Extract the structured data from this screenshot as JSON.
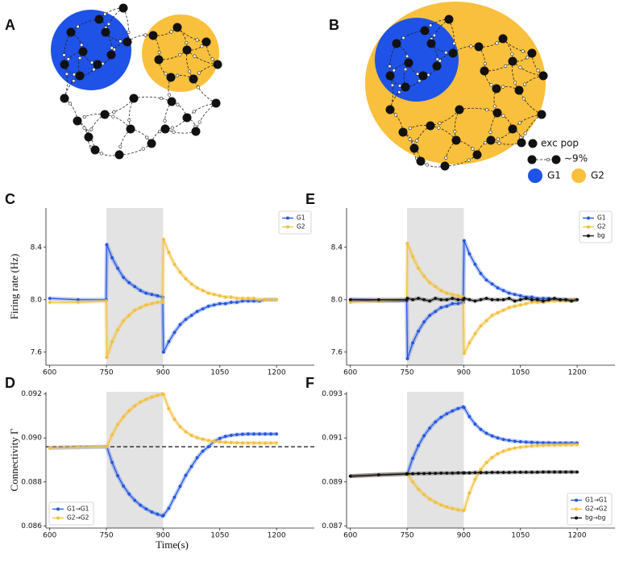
{
  "diagrams": [
    {
      "label": "A",
      "colors": [
        "#1f52e6",
        "#f8c03c"
      ]
    },
    {
      "label": "B",
      "colors": [
        "#1f52e6",
        "#f8c03c"
      ],
      "legend": {
        "node": "exc pop",
        "link": "∼9%",
        "groups": [
          "G1",
          "G2"
        ]
      }
    }
  ],
  "chart_data": [
    {
      "type": "line",
      "label": "C",
      "ylabel": "Firing rate (Hz)",
      "x": [
        600,
        675,
        749,
        751,
        765,
        780,
        795,
        810,
        825,
        840,
        855,
        870,
        885,
        899,
        901,
        915,
        930,
        945,
        960,
        975,
        990,
        1005,
        1020,
        1035,
        1050,
        1065,
        1080,
        1095,
        1110,
        1125,
        1140,
        1155,
        1170,
        1185,
        1200
      ],
      "series": [
        {
          "name": "G1",
          "color": "#2356e0",
          "values": [
            8.01,
            8.0,
            8.0,
            8.42,
            8.32,
            8.24,
            8.17,
            8.13,
            8.1,
            8.07,
            8.05,
            8.04,
            8.03,
            8.02,
            7.6,
            7.68,
            7.75,
            7.81,
            7.85,
            7.88,
            7.91,
            7.93,
            7.95,
            7.96,
            7.97,
            7.97,
            7.98,
            7.98,
            7.99,
            7.99,
            7.99,
            7.99,
            8.0,
            8.0,
            8.0
          ]
        },
        {
          "name": "G2",
          "color": "#f2c03a",
          "values": [
            7.98,
            7.98,
            7.99,
            7.56,
            7.68,
            7.77,
            7.84,
            7.88,
            7.92,
            7.94,
            7.96,
            7.97,
            7.98,
            7.98,
            8.46,
            8.36,
            8.27,
            8.21,
            8.16,
            8.12,
            8.09,
            8.07,
            8.05,
            8.04,
            8.03,
            8.02,
            8.02,
            8.01,
            8.01,
            8.01,
            8.01,
            8.0,
            8.0,
            8.0,
            8.0
          ]
        }
      ],
      "xlim": [
        590,
        1300
      ],
      "ylim": [
        7.5,
        8.7
      ],
      "xticks": [
        600,
        750,
        900,
        1050,
        1200
      ],
      "yticks": [
        7.6,
        {
          "value": 8,
          "label": "8.0"
        },
        8.4
      ],
      "shaded_xrange": [
        750,
        900
      ],
      "shade_color": "#e3e3e3",
      "legend": "upper right"
    },
    {
      "type": "line",
      "label": "E",
      "x": [
        600,
        675,
        749,
        751,
        765,
        780,
        795,
        810,
        825,
        840,
        855,
        870,
        885,
        899,
        901,
        915,
        930,
        945,
        960,
        975,
        990,
        1005,
        1020,
        1035,
        1050,
        1065,
        1080,
        1095,
        1110,
        1125,
        1140,
        1155,
        1170,
        1185,
        1200
      ],
      "series": [
        {
          "name": "G1",
          "color": "#2356e0",
          "values": [
            8.0,
            7.99,
            7.99,
            7.55,
            7.67,
            7.76,
            7.83,
            7.88,
            7.91,
            7.94,
            7.95,
            7.97,
            7.97,
            7.98,
            8.45,
            8.35,
            8.27,
            8.2,
            8.15,
            8.12,
            8.09,
            8.07,
            8.05,
            8.04,
            8.03,
            8.02,
            8.02,
            8.01,
            8.01,
            8.01,
            8.0,
            8.0,
            8.0,
            8.0,
            8.0
          ]
        },
        {
          "name": "G2",
          "color": "#f2c03a",
          "values": [
            7.98,
            7.99,
            8.0,
            8.43,
            8.33,
            8.24,
            8.18,
            8.13,
            8.1,
            8.07,
            8.05,
            8.04,
            8.03,
            8.02,
            7.59,
            7.67,
            7.74,
            7.8,
            7.84,
            7.88,
            7.9,
            7.92,
            7.94,
            7.95,
            7.96,
            7.97,
            7.98,
            7.98,
            7.98,
            7.99,
            7.99,
            7.99,
            7.99,
            8.0,
            8.0
          ]
        },
        {
          "name": "bg",
          "color": "#111111",
          "values": [
            8.0,
            8.0,
            8.0,
            8.01,
            8.0,
            8.01,
            8.0,
            7.99,
            8.01,
            8.0,
            8.0,
            8.01,
            8.0,
            8.0,
            8.01,
            8.0,
            7.99,
            8.0,
            8.01,
            8.0,
            8.0,
            8.0,
            8.01,
            7.99,
            8.0,
            8.01,
            8.0,
            8.0,
            7.99,
            8.0,
            8.01,
            8.0,
            8.0,
            7.99,
            8.0
          ]
        }
      ],
      "xlim": [
        590,
        1300
      ],
      "ylim": [
        7.5,
        8.7
      ],
      "xticks": [
        600,
        750,
        900,
        1050,
        1200
      ],
      "yticks": [
        7.6,
        {
          "value": 8,
          "label": "8.0"
        },
        8.4
      ],
      "shaded_xrange": [
        750,
        900
      ],
      "shade_color": "#e3e3e3",
      "legend": "upper right"
    },
    {
      "type": "line",
      "label": "D",
      "ylabel": "Connectivity Γ",
      "xlabel": "Time(s)",
      "x": [
        600,
        675,
        749,
        751,
        765,
        780,
        795,
        810,
        825,
        840,
        855,
        870,
        885,
        899,
        901,
        915,
        930,
        945,
        960,
        975,
        990,
        1005,
        1020,
        1035,
        1050,
        1065,
        1080,
        1095,
        1110,
        1125,
        1140,
        1155,
        1170,
        1185,
        1200
      ],
      "series": [
        {
          "name": "G1→G1",
          "color": "#2356e0",
          "values": [
            0.08955,
            0.08958,
            0.0896,
            0.0896,
            0.08889,
            0.08828,
            0.08781,
            0.08745,
            0.08716,
            0.08694,
            0.08677,
            0.08663,
            0.08653,
            0.08645,
            0.08648,
            0.0868,
            0.0873,
            0.0878,
            0.0883,
            0.0887,
            0.0891,
            0.0894,
            0.0896,
            0.08985,
            0.08998,
            0.09007,
            0.09012,
            0.09015,
            0.09017,
            0.09018,
            0.09018,
            0.09018,
            0.09018,
            0.09018,
            0.09018
          ]
        },
        {
          "name": "G2→G2",
          "color": "#f2c03a",
          "values": [
            0.08955,
            0.08958,
            0.0896,
            0.0896,
            0.09014,
            0.09061,
            0.09096,
            0.09124,
            0.09146,
            0.09163,
            0.09176,
            0.09186,
            0.09194,
            0.092,
            0.09198,
            0.09134,
            0.09085,
            0.09051,
            0.09028,
            0.09012,
            0.09001,
            0.08994,
            0.08988,
            0.08985,
            0.08982,
            0.0898,
            0.08979,
            0.08978,
            0.08977,
            0.08977,
            0.08977,
            0.08977,
            0.08977,
            0.08977,
            0.08977
          ]
        }
      ],
      "xlim": [
        590,
        1300
      ],
      "ylim": [
        0.0859,
        0.0921
      ],
      "xticks": [
        600,
        750,
        900,
        1050,
        1200
      ],
      "yticks": [
        0.086,
        0.088,
        {
          "value": 0.09,
          "label": "0.090"
        },
        0.092
      ],
      "hline": 0.0896,
      "shaded_xrange": [
        750,
        900
      ],
      "shade_color": "#e3e3e3",
      "legend": "lower left"
    },
    {
      "type": "line",
      "label": "F",
      "x": [
        600,
        675,
        749,
        751,
        765,
        780,
        795,
        810,
        825,
        840,
        855,
        870,
        885,
        899,
        901,
        915,
        930,
        945,
        960,
        975,
        990,
        1005,
        1020,
        1035,
        1050,
        1065,
        1080,
        1095,
        1110,
        1125,
        1140,
        1155,
        1170,
        1185,
        1200
      ],
      "series": [
        {
          "name": "G1→G1",
          "color": "#2356e0",
          "values": [
            0.08926,
            0.08932,
            0.08937,
            0.08938,
            0.09007,
            0.09065,
            0.0911,
            0.09145,
            0.09173,
            0.09194,
            0.0921,
            0.09223,
            0.09234,
            0.09241,
            0.09238,
            0.09197,
            0.09163,
            0.09139,
            0.09121,
            0.09109,
            0.091,
            0.09093,
            0.09089,
            0.09085,
            0.09083,
            0.09081,
            0.0908,
            0.09079,
            0.09078,
            0.09078,
            0.09077,
            0.09077,
            0.09077,
            0.09077,
            0.09077
          ]
        },
        {
          "name": "G2→G2",
          "color": "#f2c03a",
          "values": [
            0.08926,
            0.08932,
            0.08937,
            0.08938,
            0.089,
            0.08867,
            0.08842,
            0.08822,
            0.08807,
            0.08795,
            0.08786,
            0.08779,
            0.08773,
            0.08769,
            0.08772,
            0.08849,
            0.08912,
            0.08956,
            0.08988,
            0.09011,
            0.09028,
            0.0904,
            0.09048,
            0.09054,
            0.09058,
            0.09061,
            0.09063,
            0.09065,
            0.09066,
            0.09067,
            0.09067,
            0.09068,
            0.09068,
            0.09069,
            0.09069
          ]
        },
        {
          "name": "bg→bg",
          "color": "#111111",
          "values": [
            0.08926,
            0.08932,
            0.08936,
            0.08937,
            0.08937,
            0.08938,
            0.08938,
            0.08939,
            0.08939,
            0.0894,
            0.0894,
            0.0894,
            0.08941,
            0.08941,
            0.08941,
            0.08941,
            0.08942,
            0.08942,
            0.08942,
            0.08943,
            0.08943,
            0.08943,
            0.08943,
            0.08944,
            0.08944,
            0.08944,
            0.08944,
            0.08944,
            0.08945,
            0.08945,
            0.08945,
            0.08945,
            0.08945,
            0.08945,
            0.08945
          ]
        }
      ],
      "xlim": [
        590,
        1300
      ],
      "ylim": [
        0.0869,
        0.0931
      ],
      "xticks": [
        600,
        750,
        900,
        1050,
        1200
      ],
      "yticks": [
        0.087,
        0.089,
        0.091,
        0.093
      ],
      "shaded_xrange": [
        750,
        900
      ],
      "shade_color": "#e3e3e3",
      "legend": "lower right"
    }
  ]
}
